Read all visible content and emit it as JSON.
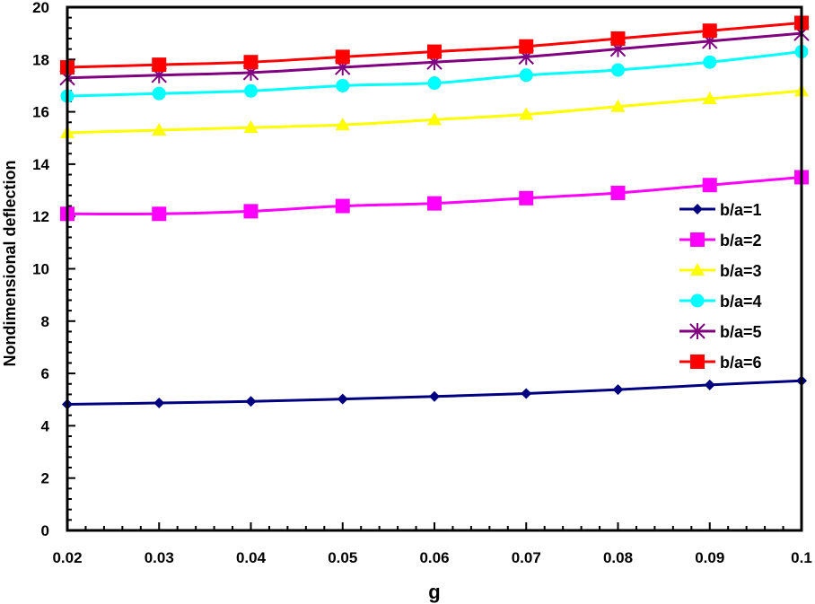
{
  "chart_data": {
    "type": "line",
    "title": "",
    "xlabel": "g",
    "ylabel": "Nondimensional deflection",
    "x": [
      0.02,
      0.03,
      0.04,
      0.05,
      0.06,
      0.07,
      0.08,
      0.09,
      0.1
    ],
    "x_tick_labels": [
      "0.02",
      "0.03",
      "0.04",
      "0.05",
      "0.06",
      "0.07",
      "0.08",
      "0.09",
      "0.1"
    ],
    "xlim": [
      0.02,
      0.1
    ],
    "ylim": [
      0,
      20
    ],
    "y_ticks": [
      0,
      2,
      4,
      6,
      8,
      10,
      12,
      14,
      16,
      18,
      20
    ],
    "y_tick_labels": [
      "0",
      "2",
      "4",
      "6",
      "8",
      "10",
      "12",
      "14",
      "16",
      "18",
      "20"
    ],
    "grid": false,
    "legend_position": "right",
    "series": [
      {
        "name": "b/a=1",
        "marker": "diamond",
        "color": "#000080",
        "values": [
          4.82,
          4.87,
          4.93,
          5.02,
          5.12,
          5.23,
          5.38,
          5.56,
          5.72
        ]
      },
      {
        "name": "b/a=2",
        "marker": "square",
        "color": "#FF00FF",
        "values": [
          12.1,
          12.1,
          12.2,
          12.4,
          12.5,
          12.7,
          12.9,
          13.2,
          13.5
        ]
      },
      {
        "name": "b/a=3",
        "marker": "triangle",
        "color": "#FFFF00",
        "values": [
          15.2,
          15.3,
          15.4,
          15.5,
          15.7,
          15.9,
          16.2,
          16.5,
          16.8
        ]
      },
      {
        "name": "b/a=4",
        "marker": "circle",
        "color": "#00FFFF",
        "values": [
          16.6,
          16.7,
          16.8,
          17.0,
          17.1,
          17.4,
          17.6,
          17.9,
          18.3
        ]
      },
      {
        "name": "b/a=5",
        "marker": "asterisk",
        "color": "#800080",
        "values": [
          17.3,
          17.4,
          17.5,
          17.7,
          17.9,
          18.1,
          18.4,
          18.7,
          19.0
        ]
      },
      {
        "name": "b/a=6",
        "marker": "square",
        "color": "#FF0000",
        "values": [
          17.7,
          17.8,
          17.9,
          18.1,
          18.3,
          18.5,
          18.8,
          19.1,
          19.4
        ]
      }
    ]
  }
}
